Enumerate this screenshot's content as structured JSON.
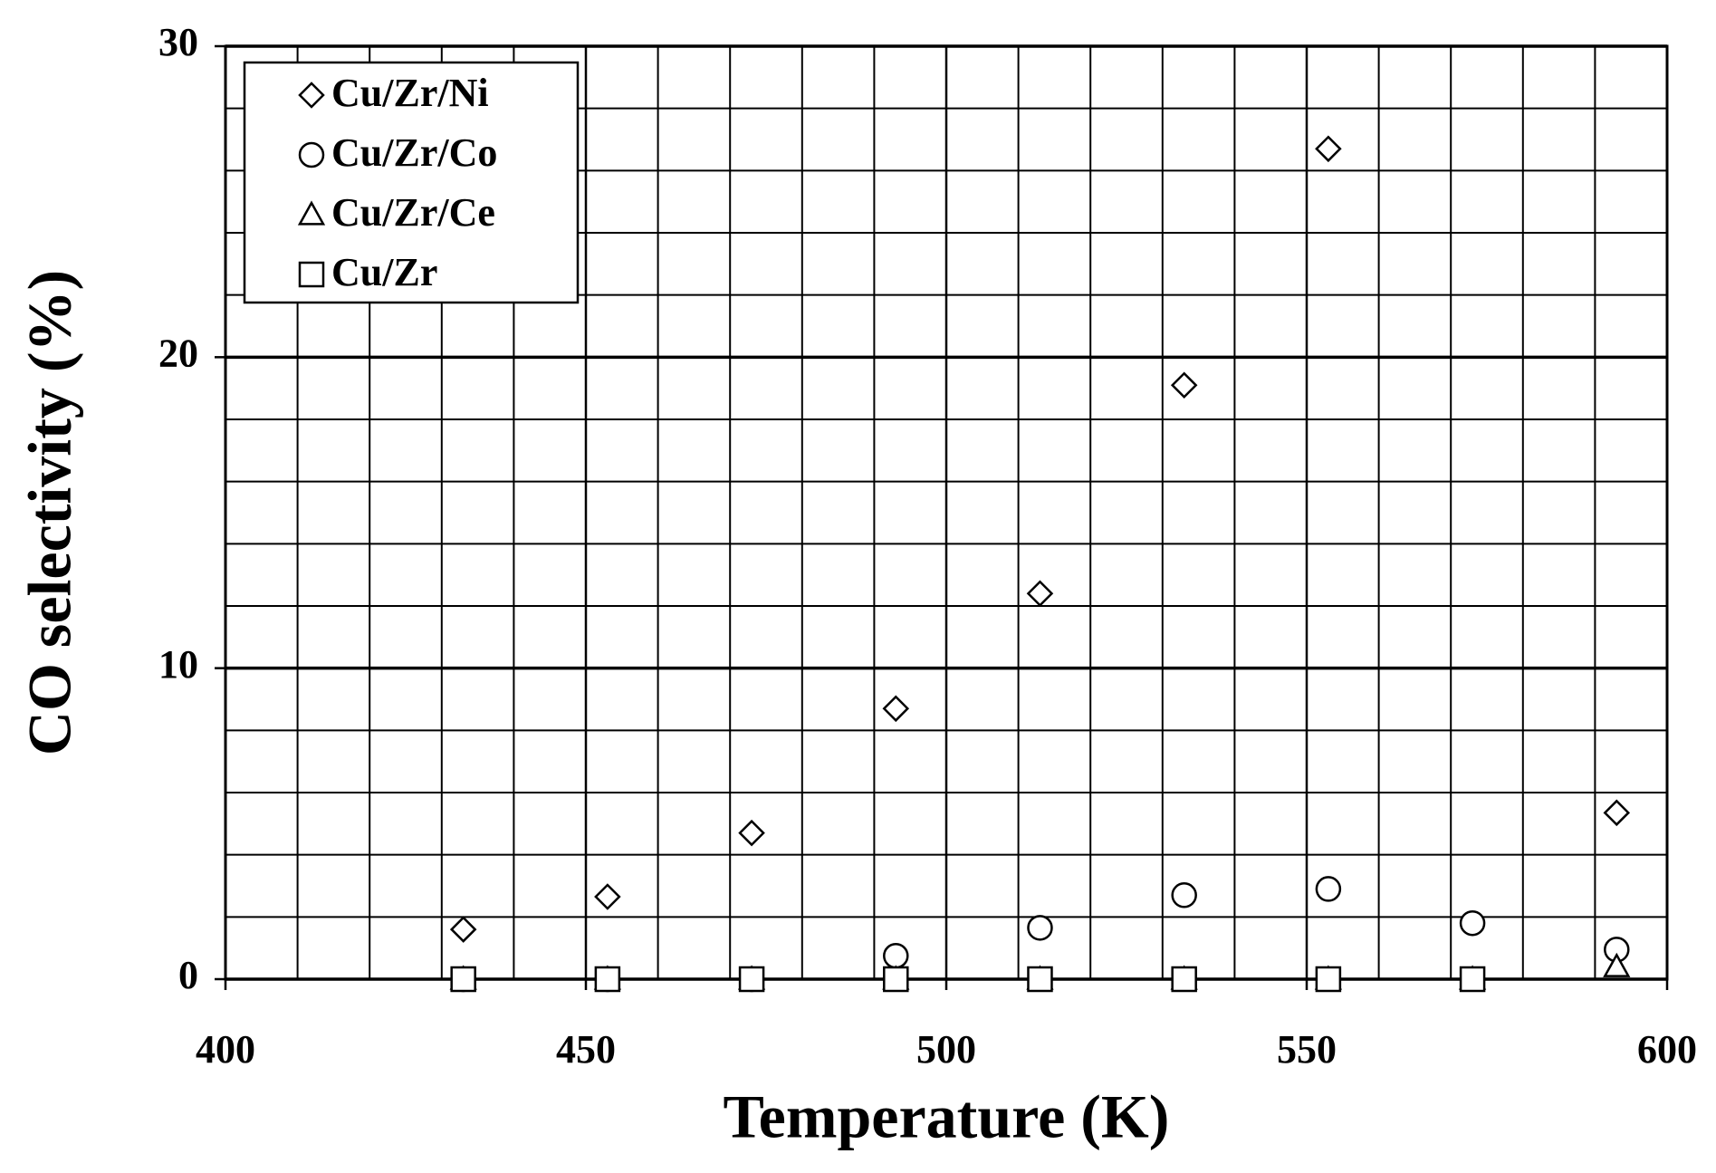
{
  "chart_data": {
    "type": "scatter",
    "xlabel": "Temperature (K)",
    "ylabel": "CO selectivity (%)",
    "xlim": [
      400,
      600
    ],
    "xticks": [
      400,
      450,
      500,
      550,
      600
    ],
    "ylim": [
      0,
      30
    ],
    "yticks": [
      0,
      10,
      20,
      30
    ],
    "grid": true,
    "legend": "upper left",
    "x": [
      433,
      453,
      473,
      493,
      513,
      533,
      553,
      573,
      593
    ],
    "series": [
      {
        "name": "Cu/Zr/Ni",
        "marker": "diamond",
        "color": "#000000",
        "values": [
          1.6,
          2.65,
          4.7,
          8.7,
          12.4,
          19.1,
          26.7,
          null,
          5.35
        ]
      },
      {
        "name": "Cu/Zr/Co",
        "marker": "circle",
        "color": "#000000",
        "values": [
          0,
          0,
          0,
          0.75,
          1.65,
          2.7,
          2.9,
          1.8,
          0.95
        ]
      },
      {
        "name": "Cu/Zr/Ce",
        "marker": "triangle",
        "color": "#000000",
        "values": [
          0,
          0,
          0,
          0,
          0,
          0,
          0,
          0,
          0.4
        ]
      },
      {
        "name": "Cu/Zr",
        "marker": "square",
        "color": "#000000",
        "values": [
          0,
          0,
          0,
          0,
          0,
          0,
          0,
          0,
          null
        ]
      }
    ]
  }
}
